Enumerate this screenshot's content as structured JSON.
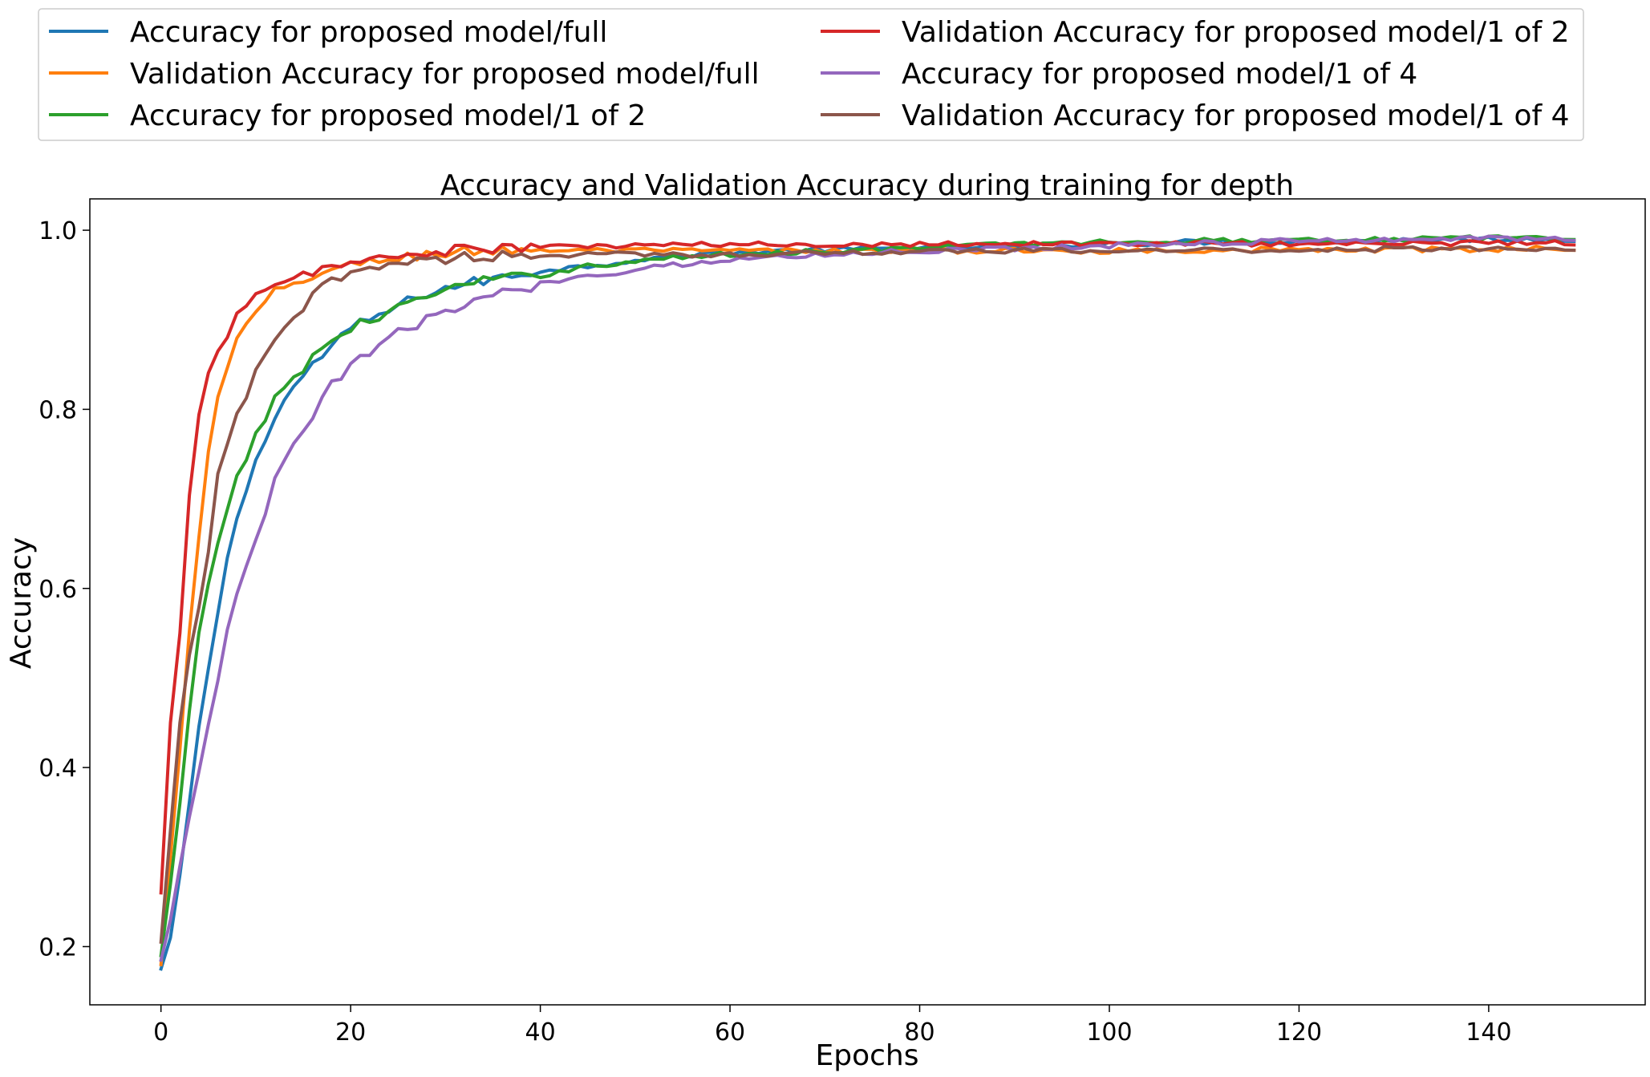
{
  "chart_data": {
    "type": "line",
    "title": "Accuracy and Validation Accuracy during training for depth",
    "xlabel": "Epochs",
    "ylabel": "Accuracy",
    "xlim": [
      -7.5,
      156.5
    ],
    "ylim": [
      0.135,
      1.035
    ],
    "xticks": [
      0,
      20,
      40,
      60,
      80,
      100,
      120,
      140
    ],
    "yticks": [
      0.2,
      0.4,
      0.6,
      0.8,
      1.0
    ],
    "ytick_labels": [
      "0.2",
      "0.4",
      "0.6",
      "0.8",
      "1.0"
    ],
    "grid": false,
    "legend_position": "top",
    "series": [
      {
        "name": "Accuracy for proposed model/full",
        "color": "#1f77b4",
        "anchors": [
          [
            0,
            0.175
          ],
          [
            1,
            0.21
          ],
          [
            2,
            0.28
          ],
          [
            3,
            0.36
          ],
          [
            4,
            0.44
          ],
          [
            5,
            0.51
          ],
          [
            6,
            0.57
          ],
          [
            7,
            0.63
          ],
          [
            8,
            0.68
          ],
          [
            10,
            0.74
          ],
          [
            12,
            0.795
          ],
          [
            14,
            0.825
          ],
          [
            16,
            0.85
          ],
          [
            20,
            0.89
          ],
          [
            24,
            0.91
          ],
          [
            28,
            0.93
          ],
          [
            32,
            0.94
          ],
          [
            36,
            0.947
          ],
          [
            40,
            0.955
          ],
          [
            45,
            0.96
          ],
          [
            50,
            0.967
          ],
          [
            55,
            0.972
          ],
          [
            60,
            0.975
          ],
          [
            70,
            0.978
          ],
          [
            80,
            0.98
          ],
          [
            90,
            0.982
          ],
          [
            100,
            0.985
          ],
          [
            110,
            0.987
          ],
          [
            120,
            0.988
          ],
          [
            130,
            0.989
          ],
          [
            140,
            0.99
          ],
          [
            149,
            0.99
          ]
        ]
      },
      {
        "name": "Validation Accuracy for proposed model/full",
        "color": "#ff7f0e",
        "anchors": [
          [
            0,
            0.18
          ],
          [
            1,
            0.3
          ],
          [
            2,
            0.42
          ],
          [
            3,
            0.55
          ],
          [
            4,
            0.66
          ],
          [
            5,
            0.75
          ],
          [
            6,
            0.81
          ],
          [
            7,
            0.845
          ],
          [
            8,
            0.88
          ],
          [
            10,
            0.905
          ],
          [
            12,
            0.93
          ],
          [
            14,
            0.94
          ],
          [
            16,
            0.95
          ],
          [
            20,
            0.96
          ],
          [
            24,
            0.968
          ],
          [
            28,
            0.973
          ],
          [
            32,
            0.976
          ],
          [
            36,
            0.978
          ],
          [
            40,
            0.978
          ],
          [
            50,
            0.977
          ],
          [
            60,
            0.977
          ],
          [
            70,
            0.977
          ],
          [
            80,
            0.977
          ],
          [
            90,
            0.977
          ],
          [
            100,
            0.977
          ],
          [
            110,
            0.978
          ],
          [
            120,
            0.978
          ],
          [
            130,
            0.978
          ],
          [
            140,
            0.979
          ],
          [
            149,
            0.98
          ]
        ]
      },
      {
        "name": "Accuracy for proposed model/1 of 2",
        "color": "#2ca02c",
        "anchors": [
          [
            0,
            0.19
          ],
          [
            1,
            0.27
          ],
          [
            2,
            0.36
          ],
          [
            3,
            0.46
          ],
          [
            4,
            0.55
          ],
          [
            5,
            0.6
          ],
          [
            6,
            0.645
          ],
          [
            7,
            0.69
          ],
          [
            8,
            0.725
          ],
          [
            10,
            0.77
          ],
          [
            12,
            0.81
          ],
          [
            14,
            0.835
          ],
          [
            16,
            0.86
          ],
          [
            20,
            0.89
          ],
          [
            24,
            0.91
          ],
          [
            28,
            0.925
          ],
          [
            32,
            0.94
          ],
          [
            36,
            0.945
          ],
          [
            40,
            0.95
          ],
          [
            45,
            0.96
          ],
          [
            50,
            0.965
          ],
          [
            55,
            0.97
          ],
          [
            60,
            0.973
          ],
          [
            70,
            0.977
          ],
          [
            80,
            0.98
          ],
          [
            90,
            0.985
          ],
          [
            100,
            0.987
          ],
          [
            110,
            0.988
          ],
          [
            120,
            0.99
          ],
          [
            130,
            0.99
          ],
          [
            140,
            0.991
          ],
          [
            149,
            0.992
          ]
        ]
      },
      {
        "name": "Validation Accuracy for proposed model/1 of 2",
        "color": "#d62728",
        "anchors": [
          [
            0,
            0.26
          ],
          [
            1,
            0.45
          ],
          [
            2,
            0.55
          ],
          [
            3,
            0.7
          ],
          [
            4,
            0.79
          ],
          [
            5,
            0.845
          ],
          [
            6,
            0.87
          ],
          [
            7,
            0.885
          ],
          [
            8,
            0.905
          ],
          [
            10,
            0.925
          ],
          [
            12,
            0.935
          ],
          [
            14,
            0.945
          ],
          [
            16,
            0.955
          ],
          [
            20,
            0.963
          ],
          [
            24,
            0.97
          ],
          [
            28,
            0.975
          ],
          [
            32,
            0.978
          ],
          [
            36,
            0.98
          ],
          [
            40,
            0.981
          ],
          [
            50,
            0.983
          ],
          [
            60,
            0.984
          ],
          [
            70,
            0.984
          ],
          [
            80,
            0.985
          ],
          [
            90,
            0.985
          ],
          [
            100,
            0.985
          ],
          [
            110,
            0.985
          ],
          [
            120,
            0.985
          ],
          [
            130,
            0.985
          ],
          [
            140,
            0.986
          ],
          [
            149,
            0.986
          ]
        ]
      },
      {
        "name": "Accuracy for proposed model/1 of 4",
        "color": "#9467bd",
        "anchors": [
          [
            0,
            0.185
          ],
          [
            1,
            0.23
          ],
          [
            2,
            0.29
          ],
          [
            3,
            0.34
          ],
          [
            4,
            0.4
          ],
          [
            5,
            0.45
          ],
          [
            6,
            0.5
          ],
          [
            7,
            0.55
          ],
          [
            8,
            0.59
          ],
          [
            10,
            0.65
          ],
          [
            12,
            0.72
          ],
          [
            14,
            0.76
          ],
          [
            16,
            0.79
          ],
          [
            18,
            0.83
          ],
          [
            20,
            0.845
          ],
          [
            22,
            0.865
          ],
          [
            24,
            0.88
          ],
          [
            26,
            0.89
          ],
          [
            28,
            0.9
          ],
          [
            30,
            0.91
          ],
          [
            32,
            0.915
          ],
          [
            34,
            0.922
          ],
          [
            36,
            0.93
          ],
          [
            40,
            0.94
          ],
          [
            44,
            0.948
          ],
          [
            48,
            0.953
          ],
          [
            52,
            0.96
          ],
          [
            56,
            0.963
          ],
          [
            60,
            0.967
          ],
          [
            70,
            0.973
          ],
          [
            80,
            0.977
          ],
          [
            90,
            0.98
          ],
          [
            100,
            0.983
          ],
          [
            110,
            0.986
          ],
          [
            120,
            0.988
          ],
          [
            130,
            0.99
          ],
          [
            140,
            0.991
          ],
          [
            149,
            0.991
          ]
        ]
      },
      {
        "name": "Validation Accuracy for proposed model/1 of 4",
        "color": "#8c564b",
        "anchors": [
          [
            0,
            0.205
          ],
          [
            1,
            0.33
          ],
          [
            2,
            0.45
          ],
          [
            3,
            0.52
          ],
          [
            4,
            0.58
          ],
          [
            5,
            0.64
          ],
          [
            6,
            0.73
          ],
          [
            7,
            0.76
          ],
          [
            8,
            0.79
          ],
          [
            10,
            0.84
          ],
          [
            12,
            0.875
          ],
          [
            14,
            0.9
          ],
          [
            16,
            0.925
          ],
          [
            18,
            0.945
          ],
          [
            20,
            0.955
          ],
          [
            24,
            0.962
          ],
          [
            28,
            0.967
          ],
          [
            32,
            0.97
          ],
          [
            36,
            0.972
          ],
          [
            40,
            0.972
          ],
          [
            50,
            0.973
          ],
          [
            60,
            0.973
          ],
          [
            70,
            0.975
          ],
          [
            80,
            0.976
          ],
          [
            90,
            0.977
          ],
          [
            100,
            0.977
          ],
          [
            110,
            0.978
          ],
          [
            120,
            0.978
          ],
          [
            130,
            0.979
          ],
          [
            140,
            0.98
          ],
          [
            149,
            0.98
          ]
        ]
      }
    ]
  }
}
